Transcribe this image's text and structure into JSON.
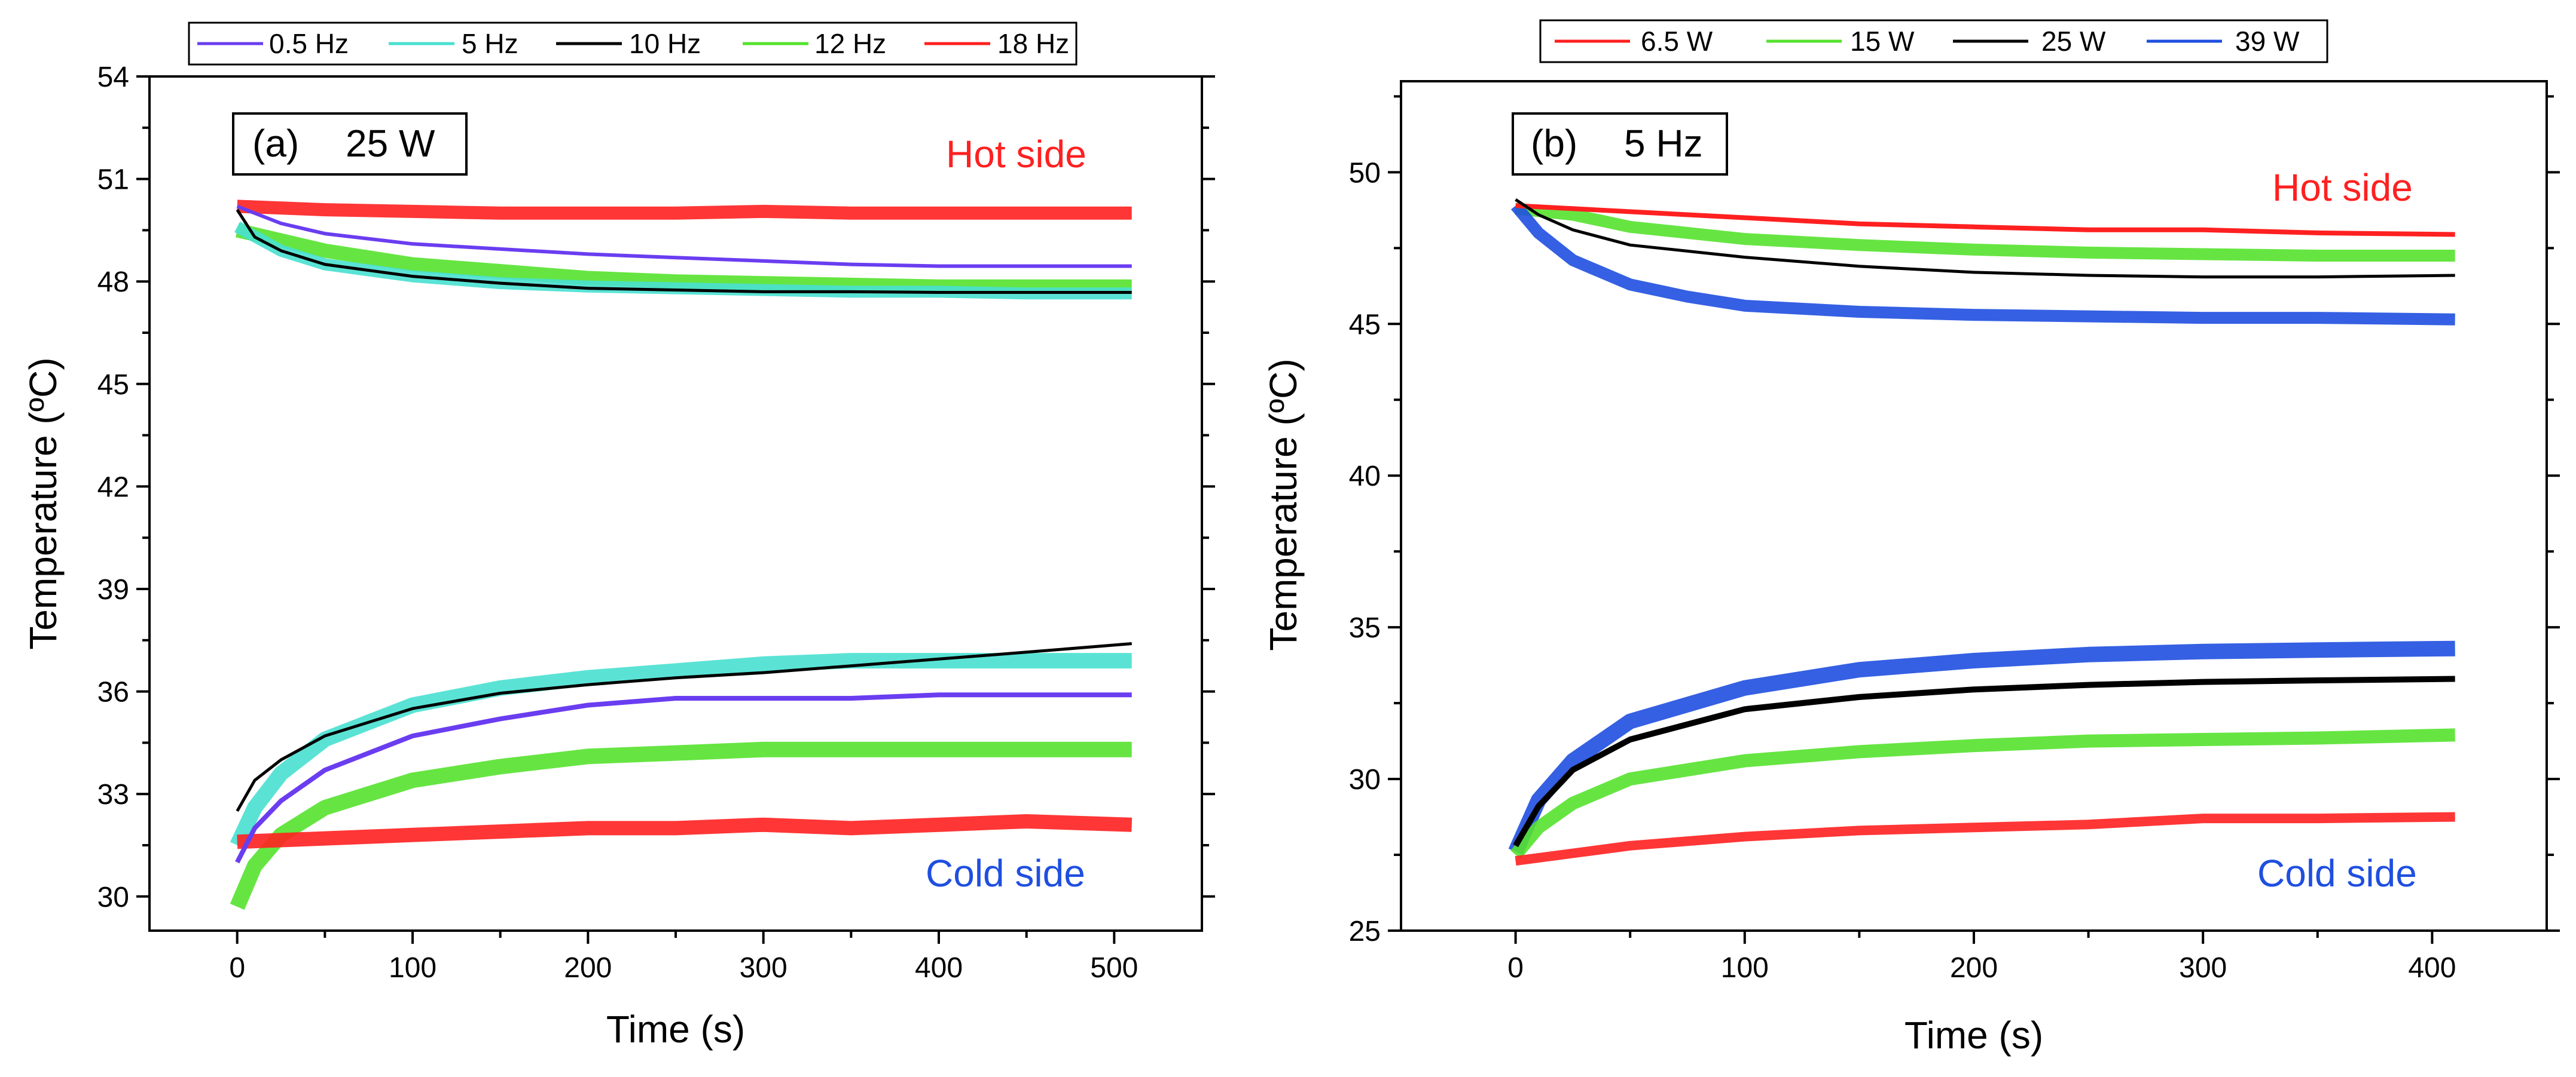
{
  "chart_data": [
    {
      "type": "line",
      "panel_label": "(a)",
      "condition": "25 W",
      "xlabel": "Time (s)",
      "ylabel": "Temperature (ºC)",
      "xlim": [
        -50,
        550
      ],
      "ylim": [
        29,
        54
      ],
      "x_ticks": [
        0,
        100,
        200,
        300,
        400,
        500
      ],
      "y_ticks": [
        30,
        33,
        36,
        39,
        42,
        45,
        48,
        51,
        54
      ],
      "annotations": [
        {
          "text": "Hot side",
          "color": "#ff2020"
        },
        {
          "text": "Cold side",
          "color": "#1f4fe0"
        }
      ],
      "legend": [
        {
          "name": "0.5 Hz",
          "color": "#6a3df0"
        },
        {
          "name": "5 Hz",
          "color": "#48e0d0"
        },
        {
          "name": "10 Hz",
          "color": "#000000"
        },
        {
          "name": "12 Hz",
          "color": "#55e22e"
        },
        {
          "name": "18 Hz",
          "color": "#ff2020"
        }
      ],
      "series": [
        {
          "name": "0.5 Hz",
          "side": "hot",
          "color": "#6a3df0",
          "width": 6,
          "x": [
            0,
            25,
            50,
            100,
            150,
            200,
            250,
            300,
            350,
            400,
            450,
            510
          ],
          "y": [
            50.2,
            49.7,
            49.4,
            49.1,
            48.95,
            48.8,
            48.7,
            48.6,
            48.5,
            48.45,
            48.45,
            48.45
          ]
        },
        {
          "name": "5 Hz",
          "side": "hot",
          "color": "#48e0d0",
          "width": 20,
          "x": [
            0,
            25,
            50,
            100,
            150,
            200,
            250,
            300,
            350,
            400,
            450,
            510
          ],
          "y": [
            49.6,
            48.9,
            48.5,
            48.15,
            47.95,
            47.85,
            47.8,
            47.75,
            47.7,
            47.7,
            47.65,
            47.65
          ]
        },
        {
          "name": "10 Hz",
          "side": "hot",
          "color": "#000000",
          "width": 5,
          "x": [
            0,
            10,
            25,
            50,
            100,
            150,
            200,
            250,
            300,
            350,
            400,
            450,
            510
          ],
          "y": [
            50.1,
            49.3,
            48.9,
            48.5,
            48.15,
            47.95,
            47.8,
            47.75,
            47.7,
            47.7,
            47.68,
            47.68,
            47.68
          ]
        },
        {
          "name": "12 Hz",
          "side": "hot",
          "color": "#55e22e",
          "width": 24,
          "x": [
            0,
            25,
            50,
            100,
            150,
            200,
            250,
            300,
            350,
            400,
            450,
            510
          ],
          "y": [
            49.5,
            49.2,
            48.9,
            48.5,
            48.3,
            48.1,
            48.0,
            47.95,
            47.9,
            47.85,
            47.85,
            47.85
          ]
        },
        {
          "name": "18 Hz",
          "side": "hot",
          "color": "#ff2020",
          "width": 22,
          "x": [
            0,
            50,
            100,
            150,
            200,
            250,
            300,
            350,
            400,
            450,
            510
          ],
          "y": [
            50.2,
            50.1,
            50.05,
            50.0,
            50.0,
            50.0,
            50.05,
            50.0,
            50.0,
            50.0,
            50.0
          ]
        },
        {
          "name": "0.5 Hz",
          "side": "cold",
          "color": "#6a3df0",
          "width": 8,
          "x": [
            0,
            10,
            25,
            50,
            100,
            150,
            200,
            250,
            300,
            350,
            400,
            450,
            510
          ],
          "y": [
            31.0,
            32.0,
            32.8,
            33.7,
            34.7,
            35.2,
            35.6,
            35.8,
            35.8,
            35.8,
            35.9,
            35.9,
            35.9
          ]
        },
        {
          "name": "5 Hz",
          "side": "cold",
          "color": "#48e0d0",
          "width": 26,
          "x": [
            0,
            10,
            25,
            50,
            100,
            150,
            200,
            250,
            300,
            350,
            400,
            450,
            510
          ],
          "y": [
            31.5,
            32.6,
            33.6,
            34.6,
            35.6,
            36.1,
            36.4,
            36.6,
            36.8,
            36.9,
            36.9,
            36.9,
            36.9
          ]
        },
        {
          "name": "10 Hz",
          "side": "cold",
          "color": "#000000",
          "width": 5,
          "x": [
            0,
            10,
            25,
            50,
            100,
            150,
            200,
            250,
            300,
            350,
            400,
            450,
            510
          ],
          "y": [
            32.5,
            33.4,
            34.0,
            34.7,
            35.5,
            35.95,
            36.2,
            36.4,
            36.55,
            36.75,
            36.95,
            37.15,
            37.4
          ]
        },
        {
          "name": "12 Hz",
          "side": "cold",
          "color": "#55e22e",
          "width": 26,
          "x": [
            0,
            10,
            25,
            50,
            100,
            150,
            200,
            250,
            300,
            350,
            400,
            450,
            510
          ],
          "y": [
            29.7,
            30.9,
            31.8,
            32.6,
            33.4,
            33.8,
            34.1,
            34.2,
            34.3,
            34.3,
            34.3,
            34.3,
            34.3
          ]
        },
        {
          "name": "18 Hz",
          "side": "cold",
          "color": "#ff2020",
          "width": 24,
          "x": [
            0,
            50,
            100,
            150,
            200,
            250,
            300,
            350,
            400,
            450,
            510
          ],
          "y": [
            31.6,
            31.7,
            31.8,
            31.9,
            32.0,
            32.0,
            32.1,
            32.0,
            32.1,
            32.2,
            32.1
          ]
        }
      ]
    },
    {
      "type": "line",
      "panel_label": "(b)",
      "condition": "5 Hz",
      "xlabel": "Time (s)",
      "ylabel": "Temperature (ºC)",
      "xlim": [
        -50,
        450
      ],
      "ylim": [
        25,
        53
      ],
      "x_ticks": [
        0,
        100,
        200,
        300,
        400
      ],
      "y_ticks": [
        25,
        30,
        35,
        40,
        45,
        50
      ],
      "annotations": [
        {
          "text": "Hot side",
          "color": "#ff2020"
        },
        {
          "text": "Cold side",
          "color": "#1f4fe0"
        }
      ],
      "legend": [
        {
          "name": "6.5 W",
          "color": "#ff2020"
        },
        {
          "name": "15 W",
          "color": "#55e22e"
        },
        {
          "name": "25 W",
          "color": "#000000"
        },
        {
          "name": "39 W",
          "color": "#1f4fe0"
        }
      ],
      "series": [
        {
          "name": "6.5 W",
          "side": "hot",
          "color": "#ff2020",
          "width": 8,
          "x": [
            0,
            50,
            100,
            150,
            200,
            250,
            300,
            350,
            410
          ],
          "y": [
            48.9,
            48.7,
            48.5,
            48.3,
            48.2,
            48.1,
            48.1,
            48.0,
            47.95
          ]
        },
        {
          "name": "15 W",
          "side": "hot",
          "color": "#55e22e",
          "width": 20,
          "x": [
            0,
            25,
            50,
            100,
            150,
            200,
            250,
            300,
            350,
            410
          ],
          "y": [
            48.8,
            48.6,
            48.2,
            47.8,
            47.6,
            47.45,
            47.35,
            47.3,
            47.25,
            47.25
          ]
        },
        {
          "name": "25 W",
          "side": "hot",
          "color": "#000000",
          "width": 5,
          "x": [
            0,
            10,
            25,
            50,
            100,
            150,
            200,
            250,
            300,
            350,
            410
          ],
          "y": [
            49.1,
            48.6,
            48.1,
            47.6,
            47.2,
            46.9,
            46.7,
            46.6,
            46.55,
            46.55,
            46.6
          ]
        },
        {
          "name": "39 W",
          "side": "hot",
          "color": "#1f4fe0",
          "width": 20,
          "x": [
            0,
            10,
            25,
            50,
            75,
            100,
            150,
            200,
            250,
            300,
            350,
            410
          ],
          "y": [
            48.9,
            48.0,
            47.1,
            46.3,
            45.9,
            45.6,
            45.4,
            45.3,
            45.25,
            45.2,
            45.2,
            45.15
          ]
        },
        {
          "name": "6.5 W",
          "side": "cold",
          "color": "#ff2020",
          "width": 16,
          "x": [
            0,
            25,
            50,
            100,
            150,
            200,
            250,
            300,
            350,
            410
          ],
          "y": [
            27.3,
            27.55,
            27.8,
            28.1,
            28.3,
            28.4,
            28.5,
            28.7,
            28.7,
            28.75
          ]
        },
        {
          "name": "15 W",
          "side": "cold",
          "color": "#55e22e",
          "width": 22,
          "x": [
            0,
            10,
            25,
            50,
            100,
            150,
            200,
            250,
            300,
            350,
            410
          ],
          "y": [
            27.5,
            28.4,
            29.2,
            30.0,
            30.6,
            30.9,
            31.1,
            31.25,
            31.3,
            31.35,
            31.45
          ]
        },
        {
          "name": "25 W",
          "side": "cold",
          "color": "#000000",
          "width": 10,
          "x": [
            0,
            10,
            25,
            50,
            100,
            150,
            200,
            250,
            300,
            350,
            410
          ],
          "y": [
            27.8,
            29.1,
            30.3,
            31.3,
            32.3,
            32.7,
            32.95,
            33.1,
            33.2,
            33.25,
            33.3
          ]
        },
        {
          "name": "39 W",
          "side": "cold",
          "color": "#1f4fe0",
          "width": 26,
          "x": [
            0,
            10,
            25,
            50,
            100,
            150,
            200,
            250,
            300,
            350,
            410
          ],
          "y": [
            27.6,
            29.3,
            30.6,
            31.9,
            33.0,
            33.6,
            33.9,
            34.1,
            34.2,
            34.25,
            34.3
          ]
        }
      ]
    }
  ]
}
